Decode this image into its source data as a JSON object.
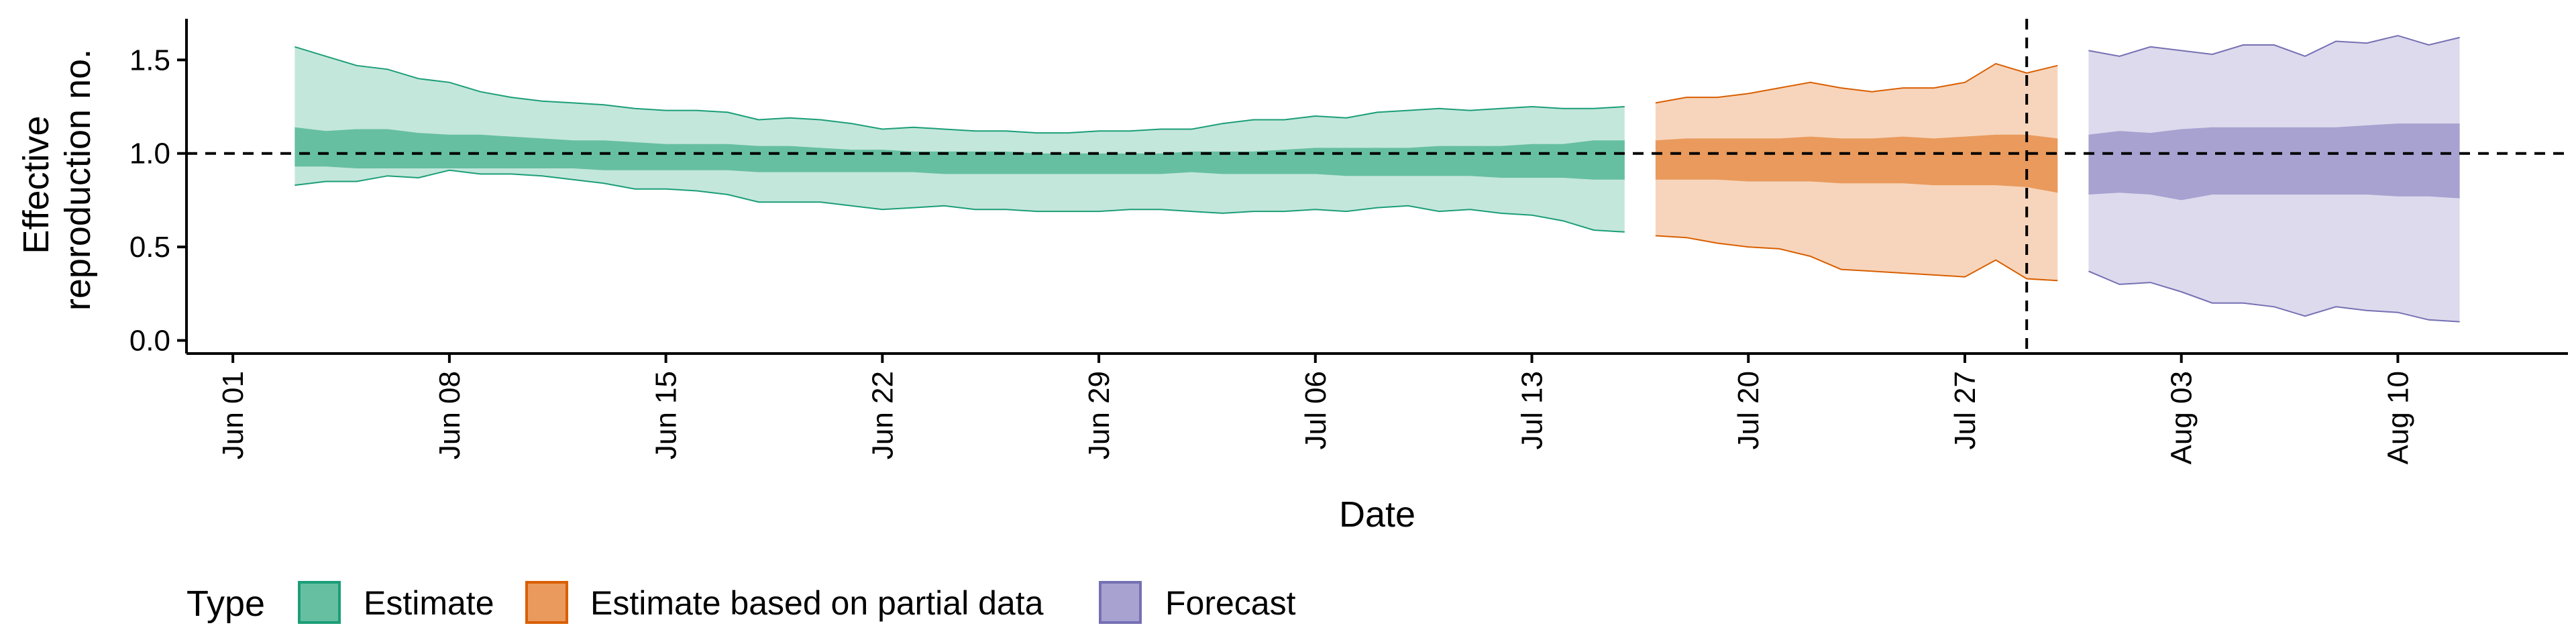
{
  "chart_data": {
    "type": "area",
    "title": "",
    "xlabel": "Date",
    "ylabel_lines": [
      "Effective",
      "reproduction no."
    ],
    "x_ticks": [
      "Jun 01",
      "Jun 08",
      "Jun 15",
      "Jun 22",
      "Jun 29",
      "Jul 06",
      "Jul 13",
      "Jul 20",
      "Jul 27",
      "Aug 03",
      "Aug 10"
    ],
    "y_ticks": [
      "0.0",
      "0.5",
      "1.0",
      "1.5"
    ],
    "ylim": [
      -0.07,
      1.72
    ],
    "xlim_days_from_jun01": [
      -1.5,
      75.5
    ],
    "reference_line_y": 1.0,
    "vertical_marker_date": "Jul 29",
    "legend": {
      "title": "Type",
      "position": "bottom",
      "entries": [
        {
          "label": "Estimate",
          "fill": "#66BFA1",
          "border": "#1B9E77"
        },
        {
          "label": "Estimate based on partial data",
          "fill": "#E99A5C",
          "border": "#D95F02"
        },
        {
          "label": "Forecast",
          "fill": "#A7A2D0",
          "border": "#7570B3"
        }
      ]
    },
    "colors": {
      "estimate": {
        "outer": "#C4E7DB",
        "inner": "#66BFA1",
        "line": "#1B9E77"
      },
      "partial": {
        "outer": "#F7D5BC",
        "inner": "#E99A5C",
        "line": "#D95F02"
      },
      "forecast": {
        "outer": "#DCDAEC",
        "inner": "#A7A2D0",
        "line": "#7570B3"
      }
    },
    "series": [
      {
        "name": "Estimate",
        "key": "estimate",
        "x": [
          "Jun 03",
          "Jun 04",
          "Jun 05",
          "Jun 06",
          "Jun 07",
          "Jun 08",
          "Jun 09",
          "Jun 10",
          "Jun 11",
          "Jun 12",
          "Jun 13",
          "Jun 14",
          "Jun 15",
          "Jun 16",
          "Jun 17",
          "Jun 18",
          "Jun 19",
          "Jun 20",
          "Jun 21",
          "Jun 22",
          "Jun 23",
          "Jun 24",
          "Jun 25",
          "Jun 26",
          "Jun 27",
          "Jun 28",
          "Jun 29",
          "Jun 30",
          "Jul 01",
          "Jul 02",
          "Jul 03",
          "Jul 04",
          "Jul 05",
          "Jul 06",
          "Jul 07",
          "Jul 08",
          "Jul 09",
          "Jul 10",
          "Jul 11",
          "Jul 12",
          "Jul 13",
          "Jul 14",
          "Jul 15",
          "Jul 16"
        ],
        "upper90": [
          1.57,
          1.52,
          1.47,
          1.45,
          1.4,
          1.38,
          1.33,
          1.3,
          1.28,
          1.27,
          1.26,
          1.24,
          1.23,
          1.23,
          1.22,
          1.18,
          1.19,
          1.18,
          1.16,
          1.13,
          1.14,
          1.13,
          1.12,
          1.12,
          1.11,
          1.11,
          1.12,
          1.12,
          1.13,
          1.13,
          1.16,
          1.18,
          1.18,
          1.2,
          1.19,
          1.22,
          1.23,
          1.24,
          1.23,
          1.24,
          1.25,
          1.24,
          1.24,
          1.25
        ],
        "upper50": [
          1.14,
          1.12,
          1.13,
          1.13,
          1.11,
          1.1,
          1.1,
          1.09,
          1.08,
          1.07,
          1.07,
          1.06,
          1.05,
          1.05,
          1.05,
          1.04,
          1.04,
          1.03,
          1.02,
          1.02,
          1.01,
          1.01,
          1.01,
          1.01,
          1.0,
          1.0,
          1.0,
          1.0,
          1.0,
          1.01,
          1.01,
          1.01,
          1.02,
          1.03,
          1.03,
          1.03,
          1.03,
          1.04,
          1.04,
          1.04,
          1.05,
          1.05,
          1.07,
          1.07
        ],
        "lower50": [
          0.93,
          0.93,
          0.92,
          0.92,
          0.92,
          0.92,
          0.92,
          0.92,
          0.92,
          0.92,
          0.91,
          0.91,
          0.91,
          0.91,
          0.91,
          0.9,
          0.9,
          0.9,
          0.9,
          0.9,
          0.9,
          0.89,
          0.89,
          0.89,
          0.89,
          0.89,
          0.89,
          0.89,
          0.89,
          0.9,
          0.89,
          0.89,
          0.89,
          0.89,
          0.88,
          0.88,
          0.88,
          0.88,
          0.88,
          0.87,
          0.87,
          0.87,
          0.86,
          0.86
        ],
        "lower90": [
          0.83,
          0.85,
          0.85,
          0.88,
          0.87,
          0.91,
          0.89,
          0.89,
          0.88,
          0.86,
          0.84,
          0.81,
          0.81,
          0.8,
          0.78,
          0.74,
          0.74,
          0.74,
          0.72,
          0.7,
          0.71,
          0.72,
          0.7,
          0.7,
          0.69,
          0.69,
          0.69,
          0.7,
          0.7,
          0.69,
          0.68,
          0.69,
          0.69,
          0.7,
          0.69,
          0.71,
          0.72,
          0.69,
          0.7,
          0.68,
          0.67,
          0.64,
          0.59,
          0.58
        ]
      },
      {
        "name": "Estimate based on partial data",
        "key": "partial",
        "x": [
          "Jul 17",
          "Jul 18",
          "Jul 19",
          "Jul 20",
          "Jul 21",
          "Jul 22",
          "Jul 23",
          "Jul 24",
          "Jul 25",
          "Jul 26",
          "Jul 27",
          "Jul 28",
          "Jul 29",
          "Jul 30"
        ],
        "upper90": [
          1.27,
          1.3,
          1.3,
          1.32,
          1.35,
          1.38,
          1.35,
          1.33,
          1.35,
          1.35,
          1.38,
          1.48,
          1.43,
          1.47
        ],
        "upper50": [
          1.07,
          1.08,
          1.08,
          1.08,
          1.08,
          1.09,
          1.08,
          1.08,
          1.09,
          1.08,
          1.09,
          1.1,
          1.1,
          1.08
        ],
        "lower50": [
          0.86,
          0.86,
          0.86,
          0.85,
          0.85,
          0.85,
          0.84,
          0.84,
          0.84,
          0.83,
          0.83,
          0.83,
          0.82,
          0.79
        ],
        "lower90": [
          0.56,
          0.55,
          0.52,
          0.5,
          0.49,
          0.45,
          0.38,
          0.37,
          0.36,
          0.35,
          0.34,
          0.43,
          0.33,
          0.32
        ]
      },
      {
        "name": "Forecast",
        "key": "forecast",
        "x": [
          "Jul 31",
          "Aug 01",
          "Aug 02",
          "Aug 03",
          "Aug 04",
          "Aug 05",
          "Aug 06",
          "Aug 07",
          "Aug 08",
          "Aug 09",
          "Aug 10",
          "Aug 11",
          "Aug 12"
        ],
        "upper90": [
          1.55,
          1.52,
          1.57,
          1.55,
          1.53,
          1.58,
          1.58,
          1.52,
          1.6,
          1.59,
          1.63,
          1.58,
          1.62
        ],
        "upper50": [
          1.1,
          1.12,
          1.11,
          1.13,
          1.14,
          1.14,
          1.14,
          1.14,
          1.14,
          1.15,
          1.16,
          1.16,
          1.16
        ],
        "lower50": [
          0.78,
          0.79,
          0.78,
          0.75,
          0.78,
          0.78,
          0.78,
          0.78,
          0.78,
          0.78,
          0.77,
          0.77,
          0.76
        ],
        "lower90": [
          0.37,
          0.3,
          0.31,
          0.26,
          0.2,
          0.2,
          0.18,
          0.13,
          0.18,
          0.16,
          0.15,
          0.11,
          0.1
        ]
      }
    ]
  }
}
